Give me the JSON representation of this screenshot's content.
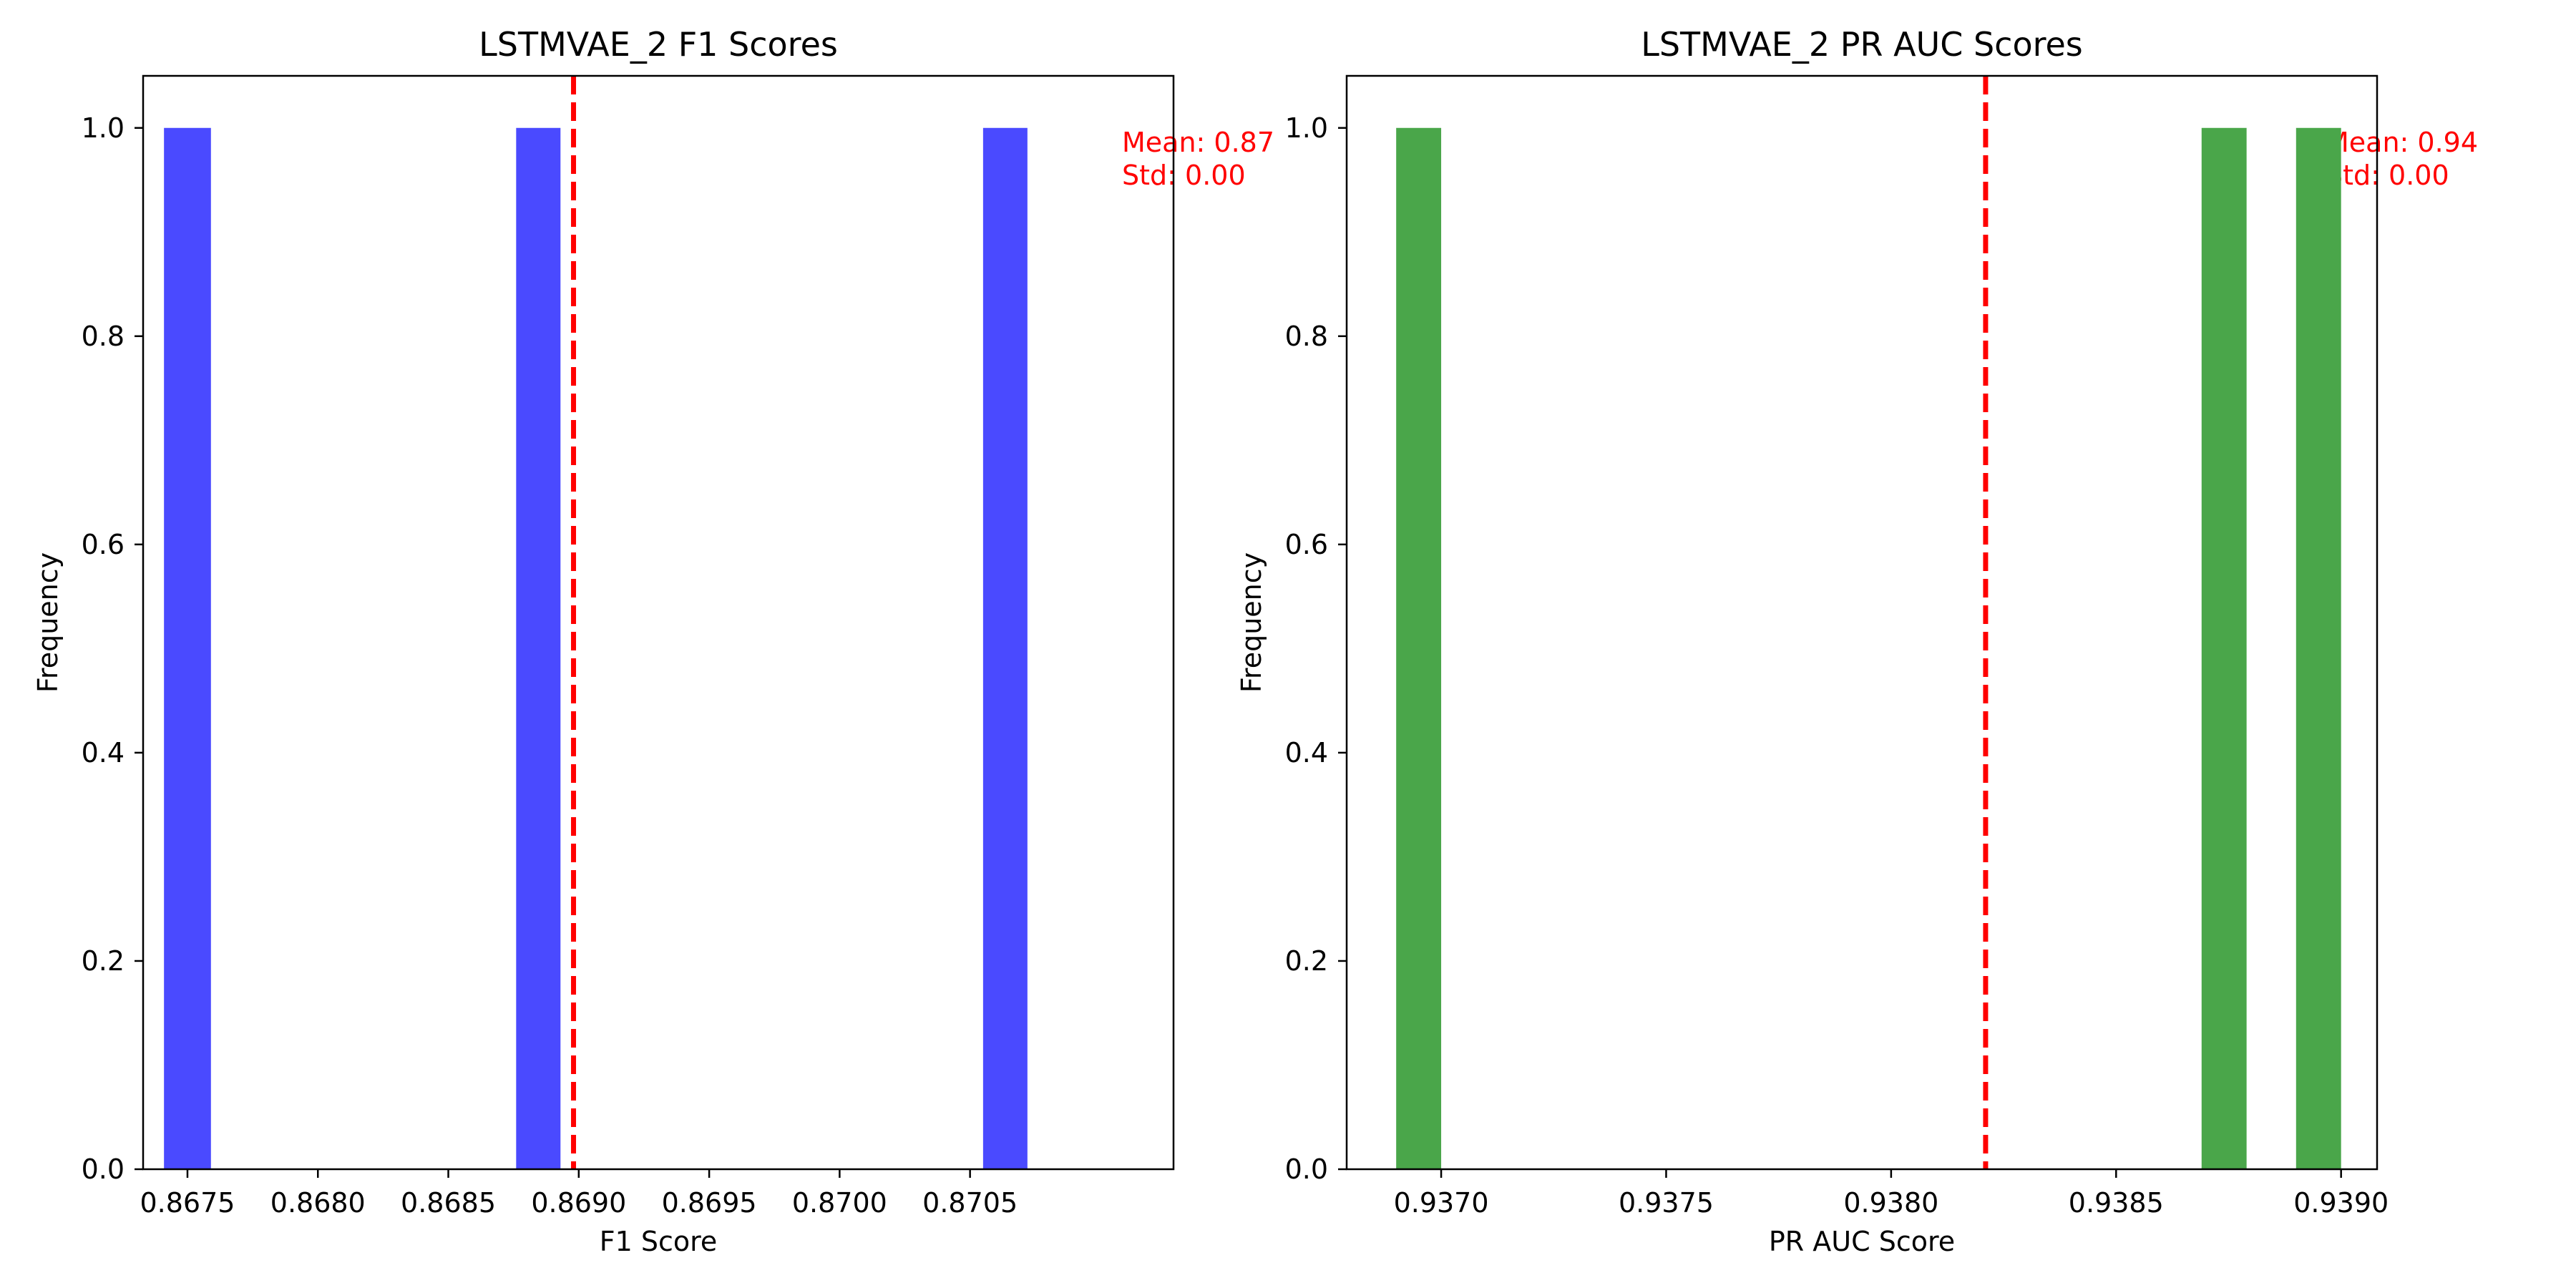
{
  "chart_data": [
    {
      "type": "bar",
      "title": "LSTMVAE_2 F1 Scores",
      "xlabel": "F1 Score",
      "ylabel": "Frequency",
      "xlim": [
        0.86733,
        0.87128
      ],
      "ylim": [
        0,
        1.05
      ],
      "xticks": [
        "0.8675",
        "0.8680",
        "0.8685",
        "0.8690",
        "0.8695",
        "0.8700",
        "0.8705"
      ],
      "yticks": [
        "0.0",
        "0.2",
        "0.4",
        "0.6",
        "0.8",
        "1.0"
      ],
      "bars": [
        {
          "x0": 0.86741,
          "x1": 0.86759,
          "value": 1.0
        },
        {
          "x0": 0.86876,
          "x1": 0.86893,
          "value": 1.0
        },
        {
          "x0": 0.87055,
          "x1": 0.87072,
          "value": 1.0
        }
      ],
      "bar_color": "#4a4aff",
      "mean_line": {
        "x": 0.86898,
        "color": "#ff0000"
      },
      "annotation": {
        "mean": "Mean: 0.87",
        "std": "Std: 0.00"
      },
      "grid": false,
      "legend": "none"
    },
    {
      "type": "bar",
      "title": "LSTMVAE_2 PR AUC Scores",
      "xlabel": "PR AUC Score",
      "ylabel": "Frequency",
      "xlim": [
        0.93679,
        0.93908
      ],
      "ylim": [
        0,
        1.05
      ],
      "xticks": [
        "0.9370",
        "0.9375",
        "0.9380",
        "0.9385",
        "0.9390"
      ],
      "yticks": [
        "0.0",
        "0.2",
        "0.4",
        "0.6",
        "0.8",
        "1.0"
      ],
      "bars": [
        {
          "x0": 0.9369,
          "x1": 0.937,
          "value": 1.0
        },
        {
          "x0": 0.93869,
          "x1": 0.93879,
          "value": 1.0
        },
        {
          "x0": 0.9389,
          "x1": 0.939,
          "value": 1.0
        }
      ],
      "bar_color": "#4aa64a",
      "mean_line": {
        "x": 0.93821,
        "color": "#ff0000"
      },
      "annotation": {
        "mean": "Mean: 0.94",
        "std": "Std: 0.00"
      },
      "grid": false,
      "legend": "none"
    }
  ]
}
